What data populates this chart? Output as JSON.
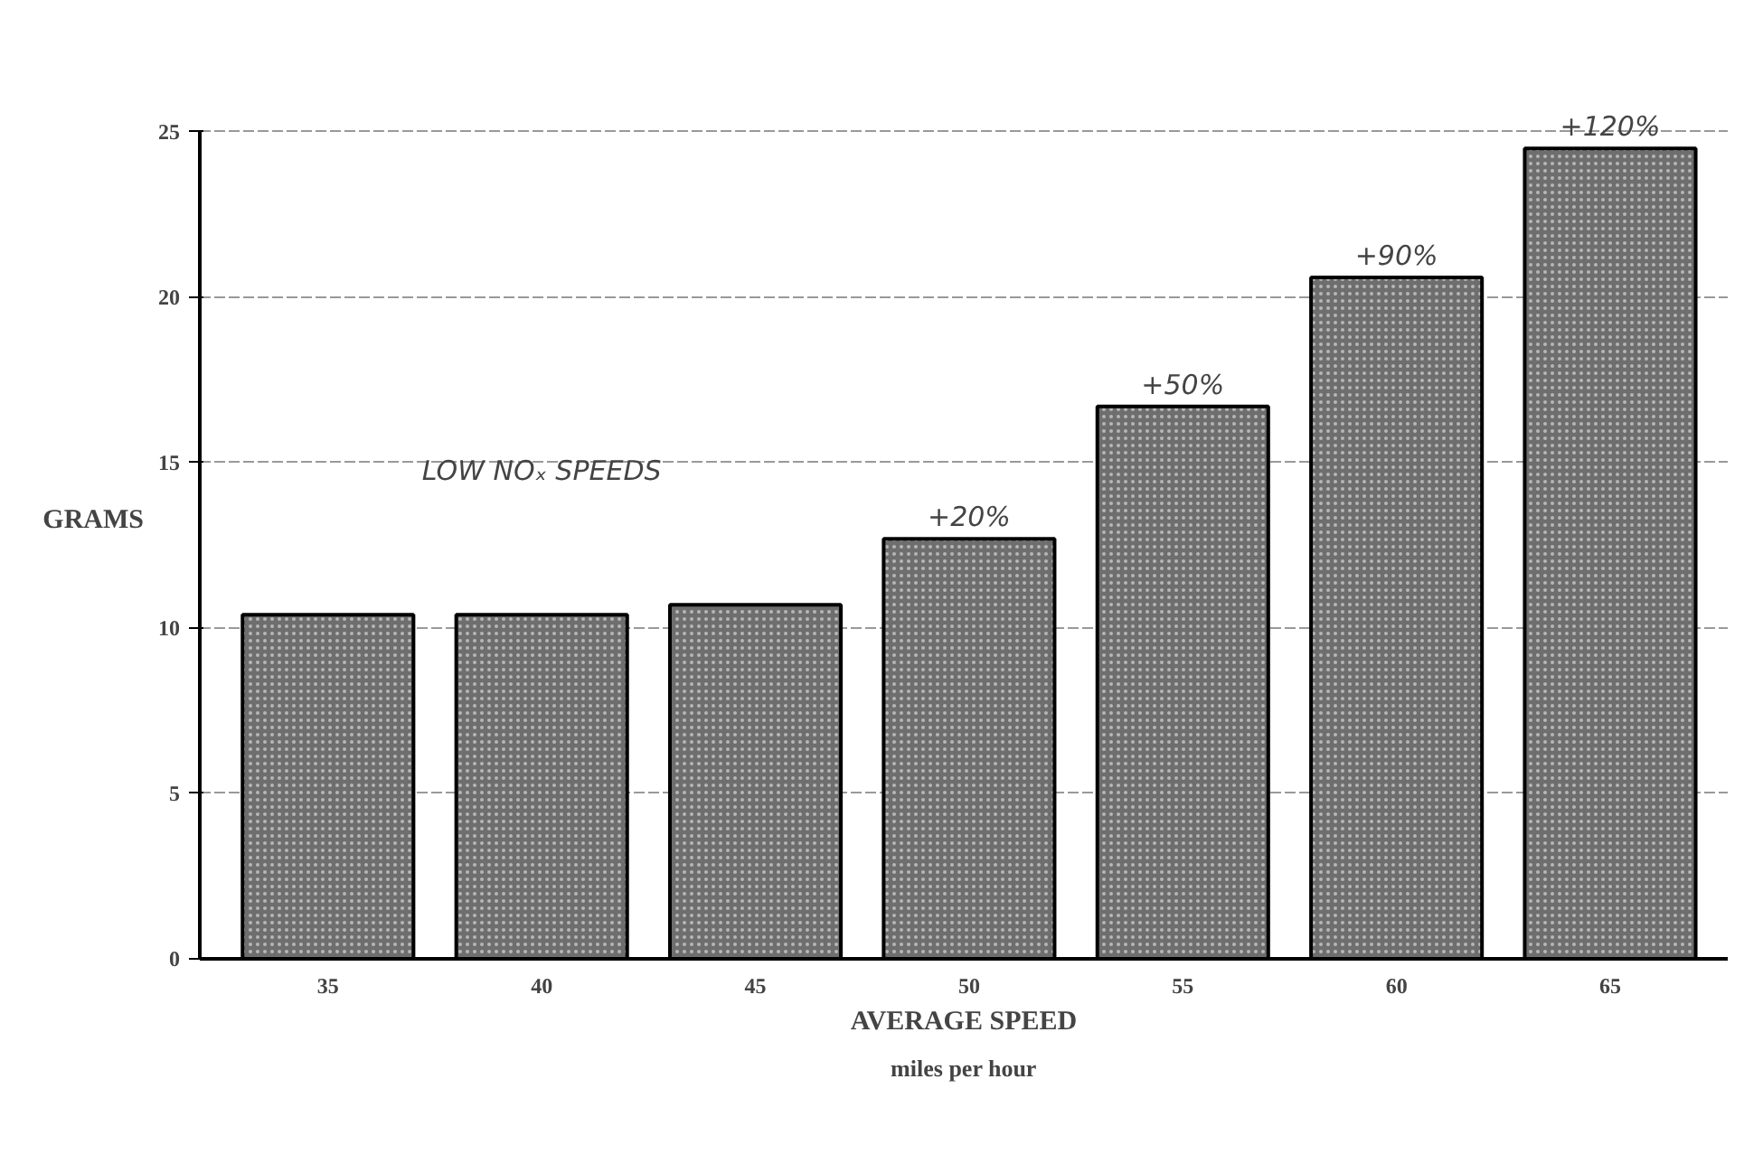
{
  "chart_data": {
    "type": "bar",
    "xlabel": "AVERAGE SPEED",
    "ylabel": "GRAMS",
    "categories": [
      "35",
      "40",
      "45",
      "50",
      "55",
      "60",
      "65"
    ],
    "values": [
      10.4,
      10.4,
      10.7,
      12.7,
      16.7,
      20.6,
      24.5
    ],
    "color": "#6e6e6e",
    "ylim": [
      0,
      25
    ],
    "yticks": [
      0,
      5,
      10,
      15,
      20,
      25
    ],
    "grid": "y",
    "annotations": [
      "miles per hour",
      "LOW NOₓ SPEEDS",
      {
        "text": "+20%",
        "x": "50",
        "y": 12.7
      },
      {
        "text": "+50%",
        "x": "55",
        "y": 16.7
      },
      {
        "text": "+90%",
        "x": "60",
        "y": 20.6
      },
      {
        "text": "+120%",
        "x": "65",
        "y": 24.5
      }
    ]
  }
}
